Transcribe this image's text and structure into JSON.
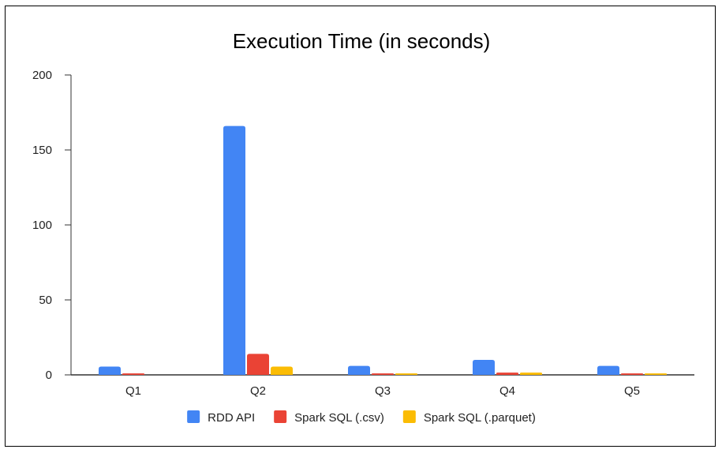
{
  "chart_data": {
    "type": "bar",
    "title": "Execution Time (in seconds)",
    "xlabel": "",
    "ylabel": "",
    "categories": [
      "Q1",
      "Q2",
      "Q3",
      "Q4",
      "Q5"
    ],
    "series": [
      {
        "name": "RDD API",
        "color": "#4285F4",
        "values": [
          5.5,
          166,
          6,
          10,
          6
        ]
      },
      {
        "name": "Spark SQL (.csv)",
        "color": "#EA4335",
        "values": [
          1,
          14,
          1,
          1.5,
          1
        ]
      },
      {
        "name": "Spark SQL (.parquet)",
        "color": "#FBBC04",
        "values": [
          0,
          5.5,
          1,
          1.5,
          1
        ]
      }
    ],
    "ylim": [
      0,
      200
    ],
    "yticks": [
      0,
      50,
      100,
      150,
      200
    ],
    "legend_position": "bottom",
    "grid": false
  }
}
